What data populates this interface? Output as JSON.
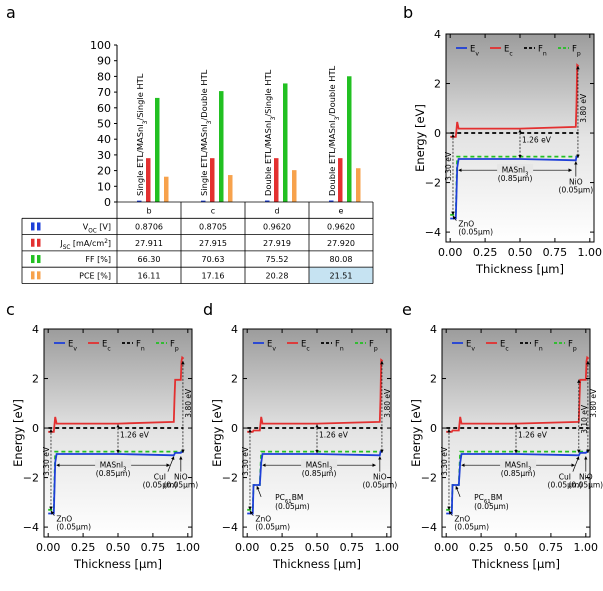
{
  "panel_letters": [
    "a",
    "b",
    "c",
    "d",
    "e"
  ],
  "colors": {
    "voc": "#1e3fd8",
    "jsc": "#e33030",
    "ff": "#22c022",
    "pce": "#f7a24c",
    "Ev": "#1e3fd8",
    "Ec": "#e33030",
    "Fn": "#000000",
    "Fp": "#22c022",
    "highlight": "#c6e3f2"
  },
  "chart_data": [
    {
      "panel": "a",
      "type": "bar",
      "categories": [
        "Single ETL/MASnI3/Single HTL",
        "Single ETL/MASnI3/Double HTL",
        "Double ETL/MASnI3/Single HTL",
        "Double ETL/MASnI3/Double HTL"
      ],
      "category_ids": [
        "b",
        "c",
        "d",
        "e"
      ],
      "ylim": [
        0,
        100
      ],
      "yticks": [
        0,
        10,
        20,
        30,
        40,
        50,
        60,
        70,
        80,
        90,
        100
      ],
      "series": [
        {
          "name": "VOC [V]",
          "color_key": "voc",
          "values": [
            0.8706,
            0.8705,
            0.962,
            0.962
          ],
          "display": [
            "0.8706",
            "0.8705",
            "0.9620",
            "0.9620"
          ]
        },
        {
          "name": "JSC [mA/cm2]",
          "color_key": "jsc",
          "values": [
            27.911,
            27.915,
            27.919,
            27.92
          ],
          "display": [
            "27.911",
            "27.915",
            "27.919",
            "27.920"
          ]
        },
        {
          "name": "FF [%]",
          "color_key": "ff",
          "values": [
            66.3,
            70.63,
            75.52,
            80.08
          ],
          "display": [
            "66.30",
            "70.63",
            "75.52",
            "80.08"
          ]
        },
        {
          "name": "PCE [%]",
          "color_key": "pce",
          "values": [
            16.11,
            17.16,
            20.28,
            21.51
          ],
          "display": [
            "16.11",
            "17.16",
            "20.28",
            "21.51"
          ]
        }
      ],
      "table_row_labels": [
        "V_OC [V]",
        "J_SC [mA/cm²]",
        "FF [%]",
        "PCE [%]"
      ],
      "highlight_cell": "PCE, e"
    },
    {
      "panel": "b",
      "type": "line",
      "xlabel": "Thickness [μm]",
      "ylabel": "Energy [eV]",
      "xlim": [
        -0.03,
        1.03
      ],
      "ylim": [
        -4.4,
        4.0
      ],
      "xticks": [
        "0.00",
        "0.25",
        "0.50",
        "0.75",
        "1.00"
      ],
      "yticks": [
        "-4",
        "-2",
        "0",
        "2",
        "4"
      ],
      "legend": [
        "Ev",
        "Ec",
        "Fn",
        "Fp"
      ],
      "device_end": 0.92,
      "series": [
        {
          "name": "Ev",
          "x": [
            0.0,
            0.04,
            0.05,
            0.06,
            0.5,
            0.9,
            0.905,
            0.92
          ],
          "y": [
            -3.45,
            -3.45,
            -1.4,
            -1.05,
            -1.05,
            -1.1,
            -0.95,
            -0.95
          ]
        },
        {
          "name": "Ec",
          "x": [
            0.0,
            0.04,
            0.05,
            0.06,
            0.5,
            0.9,
            0.905,
            0.91,
            0.92
          ],
          "y": [
            -0.15,
            -0.15,
            0.45,
            0.18,
            0.18,
            0.25,
            1.2,
            2.75,
            2.7
          ]
        },
        {
          "name": "Fn",
          "x": [
            0.0,
            0.92
          ],
          "y": [
            0.0,
            0.0
          ]
        },
        {
          "name": "Fp",
          "x": [
            0.0,
            0.04,
            0.05,
            0.92
          ],
          "y": [
            -3.3,
            -3.3,
            -0.95,
            -0.95
          ]
        }
      ],
      "annotations": [
        {
          "text": "1.26 eV"
        },
        {
          "text": "3.30 eV"
        },
        {
          "text": "3.80 eV"
        },
        {
          "text": "MASnI3"
        },
        {
          "text": "(0.85μm)"
        },
        {
          "text": "NiO"
        },
        {
          "text": "(0.05μm)"
        },
        {
          "text": "ZnO"
        },
        {
          "text": "(0.05μm)"
        }
      ]
    },
    {
      "panel": "c",
      "type": "line",
      "xlabel": "Thickness [μm]",
      "ylabel": "Energy [eV]",
      "xlim": [
        -0.03,
        1.03
      ],
      "ylim": [
        -4.4,
        4.0
      ],
      "xticks": [
        "0.00",
        "0.25",
        "0.50",
        "0.75",
        "1.00"
      ],
      "yticks": [
        "-4",
        "-2",
        "0",
        "2",
        "4"
      ],
      "legend": [
        "Ev",
        "Ec",
        "Fn",
        "Fp"
      ],
      "device_end": 0.97,
      "series": [
        {
          "name": "Ev",
          "x": [
            0.0,
            0.04,
            0.05,
            0.06,
            0.5,
            0.9,
            0.91,
            0.95,
            0.96,
            0.97
          ],
          "y": [
            -3.45,
            -3.45,
            -1.4,
            -1.05,
            -1.05,
            -1.1,
            -1.0,
            -1.0,
            -0.95,
            -0.95
          ]
        },
        {
          "name": "Ec",
          "x": [
            0.0,
            0.04,
            0.05,
            0.06,
            0.5,
            0.9,
            0.905,
            0.91,
            0.95,
            0.955,
            0.96,
            0.97
          ],
          "y": [
            -0.15,
            -0.15,
            0.45,
            0.18,
            0.18,
            0.25,
            1.2,
            1.95,
            1.95,
            2.7,
            2.85,
            2.8
          ]
        },
        {
          "name": "Fn",
          "x": [
            0.0,
            0.97
          ],
          "y": [
            0.0,
            0.0
          ]
        },
        {
          "name": "Fp",
          "x": [
            0.0,
            0.04,
            0.05,
            0.97
          ],
          "y": [
            -3.3,
            -3.3,
            -0.95,
            -0.95
          ]
        }
      ],
      "annotations": [
        {
          "text": "1.26 eV"
        },
        {
          "text": "3.30 eV"
        },
        {
          "text": "3.80 eV"
        },
        {
          "text": "MASnI3"
        },
        {
          "text": "(0.85μm)"
        },
        {
          "text": "CuI"
        },
        {
          "text": "(0.05μm)"
        },
        {
          "text": "NiO"
        },
        {
          "text": "(0.05μm)"
        },
        {
          "text": "ZnO"
        },
        {
          "text": "(0.05μm)"
        }
      ]
    },
    {
      "panel": "d",
      "type": "line",
      "xlabel": "Thickness [μm]",
      "ylabel": "Energy [eV]",
      "xlim": [
        -0.03,
        1.03
      ],
      "ylim": [
        -4.4,
        4.0
      ],
      "xticks": [
        "0.00",
        "0.25",
        "0.50",
        "0.75",
        "1.00"
      ],
      "yticks": [
        "-4",
        "-2",
        "0",
        "2",
        "4"
      ],
      "legend": [
        "Ev",
        "Ec",
        "Fn",
        "Fp"
      ],
      "device_end": 0.97,
      "series": [
        {
          "name": "Ev",
          "x": [
            0.0,
            0.04,
            0.045,
            0.09,
            0.1,
            0.11,
            0.5,
            0.95,
            0.955,
            0.97
          ],
          "y": [
            -3.45,
            -3.45,
            -2.3,
            -2.3,
            -1.4,
            -1.05,
            -1.05,
            -1.1,
            -0.95,
            -0.95
          ]
        },
        {
          "name": "Ec",
          "x": [
            0.0,
            0.04,
            0.045,
            0.09,
            0.1,
            0.11,
            0.5,
            0.95,
            0.955,
            0.96,
            0.97
          ],
          "y": [
            -0.15,
            -0.15,
            -0.1,
            -0.1,
            0.45,
            0.18,
            0.18,
            0.25,
            1.2,
            2.75,
            2.7
          ]
        },
        {
          "name": "Fn",
          "x": [
            0.0,
            0.97
          ],
          "y": [
            0.0,
            0.0
          ]
        },
        {
          "name": "Fp",
          "x": [
            0.0,
            0.04,
            0.045,
            0.09,
            0.1,
            0.97
          ],
          "y": [
            -3.3,
            -3.3,
            -2.3,
            -2.3,
            -0.95,
            -0.95
          ]
        }
      ],
      "annotations": [
        {
          "text": "1.26 eV"
        },
        {
          "text": "3.30 eV"
        },
        {
          "text": "3.80 eV"
        },
        {
          "text": "MASnI3"
        },
        {
          "text": "(0.85μm)"
        },
        {
          "text": "NiO"
        },
        {
          "text": "(0.05μm)"
        },
        {
          "text": "PC61BM"
        },
        {
          "text": "(0.05μm)"
        },
        {
          "text": "ZnO"
        },
        {
          "text": "(0.05μm)"
        }
      ]
    },
    {
      "panel": "e",
      "type": "line",
      "xlabel": "Thickness [μm]",
      "ylabel": "Energy [eV]",
      "xlim": [
        -0.03,
        1.03
      ],
      "ylim": [
        -4.4,
        4.0
      ],
      "xticks": [
        "0.00",
        "0.25",
        "0.50",
        "0.75",
        "1.00"
      ],
      "yticks": [
        "-4",
        "-2",
        "0",
        "2",
        "4"
      ],
      "legend": [
        "Ev",
        "Ec",
        "Fn",
        "Fp"
      ],
      "device_end": 1.02,
      "series": [
        {
          "name": "Ev",
          "x": [
            0.0,
            0.04,
            0.045,
            0.09,
            0.1,
            0.11,
            0.5,
            0.95,
            0.96,
            1.0,
            1.01,
            1.02
          ],
          "y": [
            -3.45,
            -3.45,
            -2.3,
            -2.3,
            -1.4,
            -1.05,
            -1.05,
            -1.1,
            -1.0,
            -1.0,
            -0.95,
            -0.95
          ]
        },
        {
          "name": "Ec",
          "x": [
            0.0,
            0.04,
            0.045,
            0.09,
            0.1,
            0.11,
            0.5,
            0.95,
            0.955,
            0.96,
            1.0,
            1.005,
            1.01,
            1.02
          ],
          "y": [
            -0.15,
            -0.15,
            -0.1,
            -0.1,
            0.45,
            0.18,
            0.18,
            0.25,
            1.2,
            1.95,
            1.95,
            2.7,
            2.85,
            2.8
          ]
        },
        {
          "name": "Fn",
          "x": [
            0.0,
            1.02
          ],
          "y": [
            0.0,
            0.0
          ]
        },
        {
          "name": "Fp",
          "x": [
            0.0,
            0.04,
            0.045,
            0.09,
            0.1,
            1.02
          ],
          "y": [
            -3.3,
            -3.3,
            -2.3,
            -2.3,
            -0.95,
            -0.95
          ]
        }
      ],
      "annotations": [
        {
          "text": "1.26 eV"
        },
        {
          "text": "3.30 eV"
        },
        {
          "text": "3.10 eV"
        },
        {
          "text": "3.80 eV"
        },
        {
          "text": "MASnI3"
        },
        {
          "text": "(0.85μm)"
        },
        {
          "text": "CuI"
        },
        {
          "text": "(0.05μm)"
        },
        {
          "text": "NiO"
        },
        {
          "text": "(0.05μm)"
        },
        {
          "text": "PC61BM"
        },
        {
          "text": "(0.05μm)"
        },
        {
          "text": "ZnO"
        },
        {
          "text": "(0.05μm)"
        }
      ]
    }
  ]
}
